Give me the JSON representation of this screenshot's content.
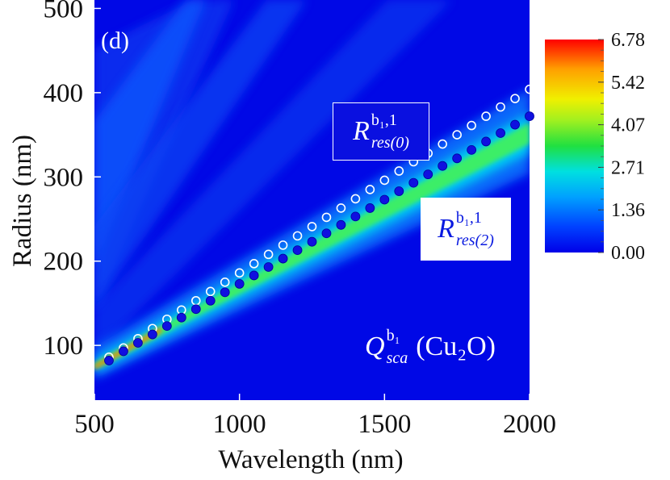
{
  "chart_data": {
    "type": "heatmap",
    "panel_label": "(d)",
    "xlabel": "Wavelength (nm)",
    "ylabel": "Radius (nm)",
    "xlim": [
      500,
      2000
    ],
    "ylim": [
      35,
      510
    ],
    "xticks": [
      500,
      1000,
      1500,
      2000
    ],
    "yticks": [
      100,
      200,
      300,
      400,
      500
    ],
    "colorbar": {
      "ticks": [
        "6.78",
        "5.42",
        "4.07",
        "2.71",
        "1.36",
        "0.00"
      ],
      "min": 0.0,
      "max": 6.78
    },
    "annotations": {
      "res0": {
        "base": "R",
        "sup": "b₁,1",
        "sub": "res(0)"
      },
      "res2": {
        "base": "R",
        "sup": "b₁,1",
        "sub": "res(2)"
      },
      "qsca": {
        "base": "Q",
        "sup": "b₁",
        "sub": "sca",
        "material": "(Cu₂O)"
      }
    },
    "series": [
      {
        "name": "R_res(0) open circles",
        "marker": "open-circle",
        "x": [
          550,
          600,
          650,
          700,
          750,
          800,
          850,
          900,
          950,
          1000,
          1050,
          1100,
          1150,
          1200,
          1250,
          1300,
          1350,
          1400,
          1450,
          1500,
          1550,
          1600,
          1650,
          1700,
          1750,
          1800,
          1850,
          1900,
          1950,
          2000
        ],
        "y": [
          86,
          97,
          108,
          120,
          131,
          142,
          153,
          164,
          175,
          186,
          197,
          208,
          219,
          230,
          241,
          252,
          263,
          274,
          285,
          296,
          307,
          318,
          328,
          339,
          350,
          361,
          372,
          383,
          393,
          404
        ]
      },
      {
        "name": "R_res(2) filled circles",
        "marker": "filled-circle",
        "x": [
          550,
          600,
          650,
          700,
          750,
          800,
          850,
          900,
          950,
          1000,
          1050,
          1100,
          1150,
          1200,
          1250,
          1300,
          1350,
          1400,
          1450,
          1500,
          1550,
          1600,
          1650,
          1700,
          1750,
          1800,
          1850,
          1900,
          1950,
          2000
        ],
        "y": [
          82,
          93,
          103,
          113,
          123,
          133,
          143,
          153,
          163,
          173,
          183,
          193,
          203,
          213,
          223,
          233,
          243,
          253,
          263,
          273,
          283,
          293,
          303,
          313,
          322,
          332,
          342,
          352,
          362,
          372
        ]
      }
    ]
  }
}
